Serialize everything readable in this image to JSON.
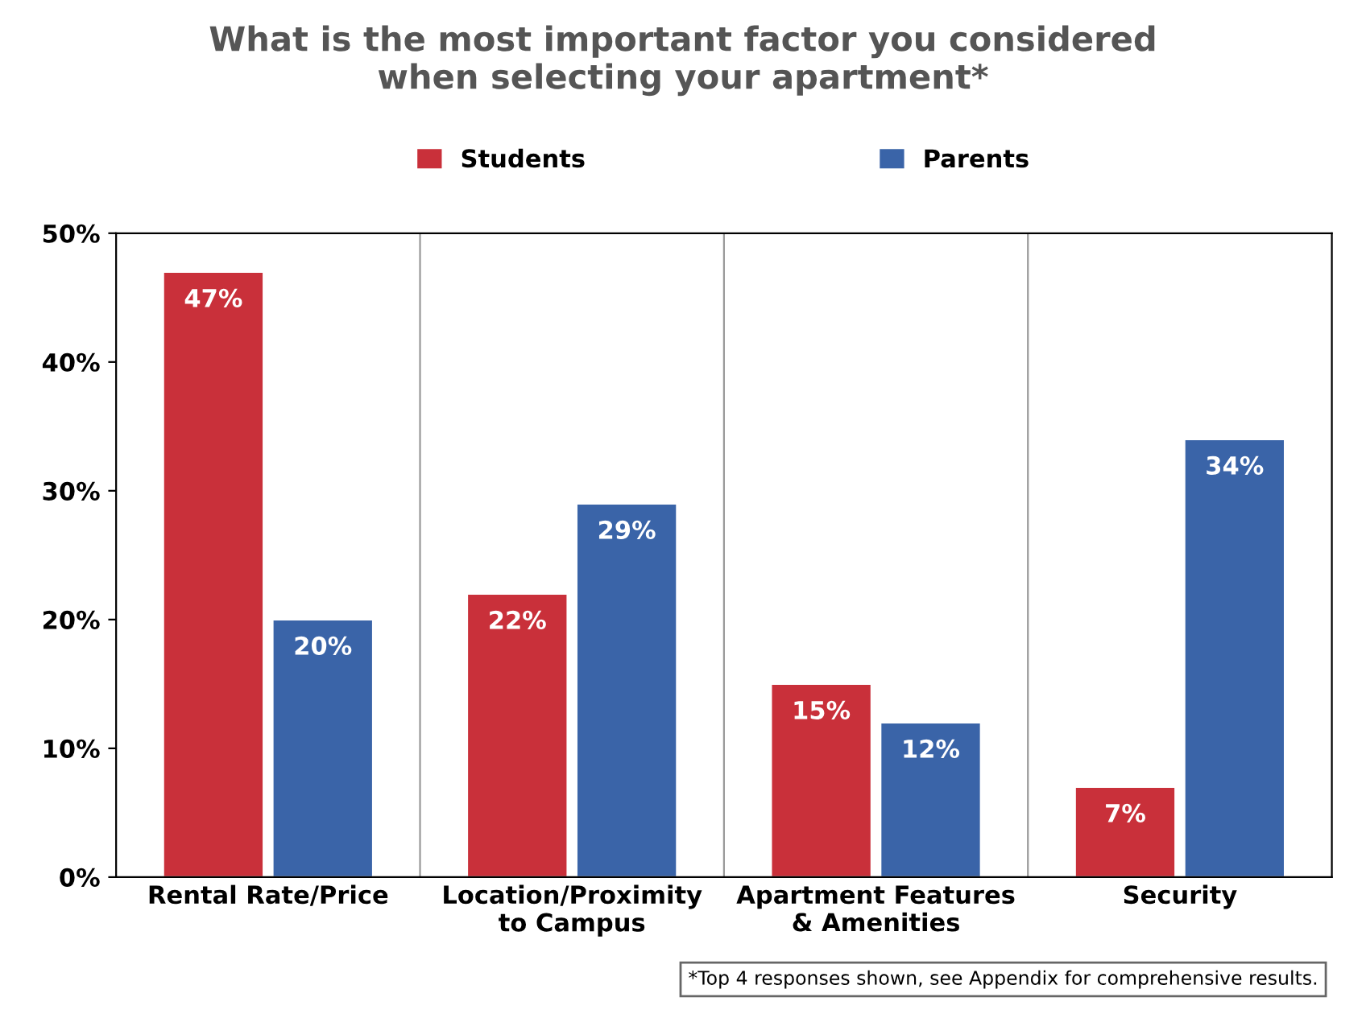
{
  "chart_data": {
    "type": "bar",
    "title": "What is the most important factor you considered\nwhen selecting your apartment*",
    "categories": [
      "Rental Rate/Price",
      "Location/Proximity\nto Campus",
      "Apartment Features\n& Amenities",
      "Security"
    ],
    "series": [
      {
        "name": "Students",
        "color": "#c9303a",
        "values": [
          47,
          22,
          15,
          7
        ],
        "value_labels": [
          "47%",
          "22%",
          "15%",
          "7%"
        ]
      },
      {
        "name": "Parents",
        "color": "#3a64a8",
        "values": [
          20,
          29,
          12,
          34
        ],
        "value_labels": [
          "20%",
          "29%",
          "12%",
          "34%"
        ]
      }
    ],
    "ylim": [
      0,
      50
    ],
    "yticks": [
      {
        "value": 0,
        "label": "0%"
      },
      {
        "value": 10,
        "label": "10%"
      },
      {
        "value": 20,
        "label": "20%"
      },
      {
        "value": 30,
        "label": "30%"
      },
      {
        "value": 40,
        "label": "40%"
      },
      {
        "value": 50,
        "label": "50%"
      }
    ],
    "grid": "x",
    "legend": "top",
    "annotations": [
      "*Top 4 responses shown, see Appendix for comprehensive results."
    ]
  }
}
